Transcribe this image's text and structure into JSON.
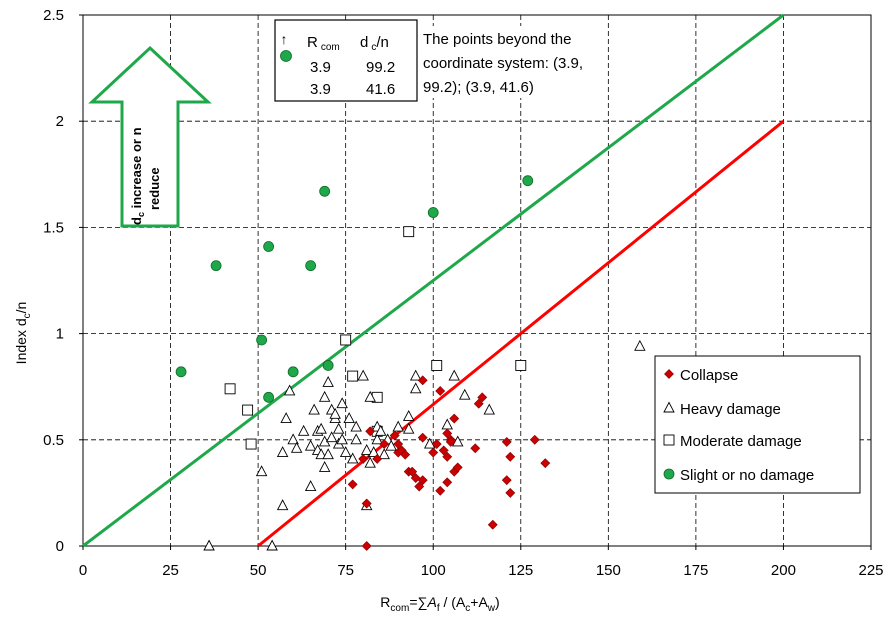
{
  "chart_data": {
    "type": "scatter",
    "xlabel_parts": [
      "R",
      "com",
      "=∑",
      "A",
      "f",
      " / (A",
      "c",
      "+A",
      "w",
      ")"
    ],
    "ylabel_parts": [
      "Index d",
      "c",
      "/n"
    ],
    "xlim": [
      0,
      225
    ],
    "ylim": [
      0,
      2.5
    ],
    "x_ticks": [
      0,
      25,
      50,
      75,
      100,
      125,
      150,
      175,
      200,
      225
    ],
    "y_ticks": [
      0,
      0.5,
      1,
      1.5,
      2,
      2.5
    ],
    "x_tick_labels": [
      "0",
      "25",
      "50",
      "75",
      "100",
      "125",
      "150",
      "175",
      "200",
      "225"
    ],
    "y_tick_labels": [
      "0",
      "0.5",
      "1",
      "1.5",
      "2",
      "2.5"
    ],
    "grid": true,
    "legend_position": "bottom-right",
    "lines": [
      {
        "color": "#1fa84a",
        "x": [
          0,
          200
        ],
        "y": [
          0,
          2.5
        ]
      },
      {
        "color": "#ff0000",
        "x": [
          50,
          200
        ],
        "y": [
          0,
          2
        ]
      }
    ],
    "series": [
      {
        "name": "Collapse",
        "marker": "diamond",
        "color": "#cc0000",
        "points": [
          [
            77,
            0.29
          ],
          [
            80,
            0.41
          ],
          [
            81,
            0.2
          ],
          [
            81,
            0
          ],
          [
            82,
            0.54
          ],
          [
            84,
            0.41
          ],
          [
            86,
            0.48
          ],
          [
            89,
            0.52
          ],
          [
            90,
            0.48
          ],
          [
            90,
            0.44
          ],
          [
            91,
            0.45
          ],
          [
            92,
            0.43
          ],
          [
            93,
            0.35
          ],
          [
            94,
            0.35
          ],
          [
            95,
            0.32
          ],
          [
            96,
            0.28
          ],
          [
            97,
            0.31
          ],
          [
            97,
            0.51
          ],
          [
            97,
            0.78
          ],
          [
            100,
            0.44
          ],
          [
            101,
            0.48
          ],
          [
            102,
            0.26
          ],
          [
            102,
            0.73
          ],
          [
            103,
            0.45
          ],
          [
            104,
            0.53
          ],
          [
            104,
            0.42
          ],
          [
            104,
            0.3
          ],
          [
            105,
            0.5
          ],
          [
            105,
            0.49
          ],
          [
            106,
            0.6
          ],
          [
            106,
            0.35
          ],
          [
            107,
            0.37
          ],
          [
            112,
            0.46
          ],
          [
            113,
            0.67
          ],
          [
            114,
            0.7
          ],
          [
            117,
            0.1
          ],
          [
            121,
            0.49
          ],
          [
            121,
            0.31
          ],
          [
            122,
            0.25
          ],
          [
            122,
            0.42
          ],
          [
            129,
            0.5
          ],
          [
            132,
            0.39
          ]
        ]
      },
      {
        "name": "Heavy damage",
        "marker": "triangle",
        "color": "#000000",
        "points": [
          [
            36,
            0
          ],
          [
            51,
            0.35
          ],
          [
            54,
            0
          ],
          [
            57,
            0.19
          ],
          [
            57,
            0.44
          ],
          [
            58,
            0.6
          ],
          [
            59,
            0.73
          ],
          [
            60,
            0.5
          ],
          [
            61,
            0.46
          ],
          [
            63,
            0.54
          ],
          [
            65,
            0.28
          ],
          [
            65,
            0.47
          ],
          [
            66,
            0.64
          ],
          [
            67,
            0.45
          ],
          [
            67,
            0.54
          ],
          [
            68,
            0.43
          ],
          [
            68,
            0.55
          ],
          [
            69,
            0.7
          ],
          [
            69,
            0.37
          ],
          [
            69,
            0.49
          ],
          [
            70,
            0.77
          ],
          [
            70,
            0.43
          ],
          [
            71,
            0.51
          ],
          [
            71,
            0.64
          ],
          [
            72,
            0.6
          ],
          [
            72,
            0.62
          ],
          [
            73,
            0.48
          ],
          [
            73,
            0.55
          ],
          [
            74,
            0.5
          ],
          [
            74,
            0.67
          ],
          [
            75,
            0.44
          ],
          [
            76,
            0.6
          ],
          [
            77,
            0.41
          ],
          [
            78,
            0.5
          ],
          [
            78,
            0.56
          ],
          [
            80,
            0.8
          ],
          [
            81,
            0.45
          ],
          [
            81,
            0.19
          ],
          [
            82,
            0.7
          ],
          [
            82,
            0.39
          ],
          [
            83,
            0.44
          ],
          [
            84,
            0.5
          ],
          [
            84,
            0.56
          ],
          [
            85,
            0.54
          ],
          [
            86,
            0.43
          ],
          [
            87,
            0.5
          ],
          [
            88,
            0.47
          ],
          [
            90,
            0.56
          ],
          [
            93,
            0.55
          ],
          [
            93,
            0.61
          ],
          [
            95,
            0.74
          ],
          [
            95,
            0.8
          ],
          [
            99,
            0.48
          ],
          [
            104,
            0.57
          ],
          [
            106,
            0.8
          ],
          [
            107,
            0.49
          ],
          [
            109,
            0.71
          ],
          [
            116,
            0.64
          ],
          [
            159,
            0.94
          ]
        ]
      },
      {
        "name": "Moderate damage",
        "marker": "square",
        "color": "#000000",
        "points": [
          [
            42,
            0.74
          ],
          [
            47,
            0.64
          ],
          [
            48,
            0.48
          ],
          [
            75,
            0.97
          ],
          [
            77,
            0.8
          ],
          [
            84,
            0.54
          ],
          [
            84,
            0.7
          ],
          [
            93,
            1.48
          ],
          [
            101,
            0.85
          ],
          [
            125,
            0.85
          ]
        ]
      },
      {
        "name": "Slight or no damage",
        "marker": "circle",
        "color": "#1fa84a",
        "points": [
          [
            28,
            0.82
          ],
          [
            38,
            1.32
          ],
          [
            51,
            0.97
          ],
          [
            53,
            1.41
          ],
          [
            53,
            0.7
          ],
          [
            60,
            0.82
          ],
          [
            65,
            1.32
          ],
          [
            69,
            1.67
          ],
          [
            70,
            0.85
          ],
          [
            100,
            1.57
          ],
          [
            127,
            1.72
          ]
        ]
      }
    ],
    "inset_table": {
      "headers": [
        [
          "R",
          "com"
        ],
        [
          "d",
          "c",
          "/n"
        ]
      ],
      "rows": [
        [
          "3.9",
          "99.2"
        ],
        [
          "3.9",
          "41.6"
        ]
      ]
    },
    "annotation_lines": [
      "The points beyond the",
      "coordinate system: (3.9,",
      "99.2); (3.9, 41.6)"
    ],
    "arrow_label_parts": [
      "d",
      "c",
      " increase or n",
      "reduce"
    ]
  }
}
